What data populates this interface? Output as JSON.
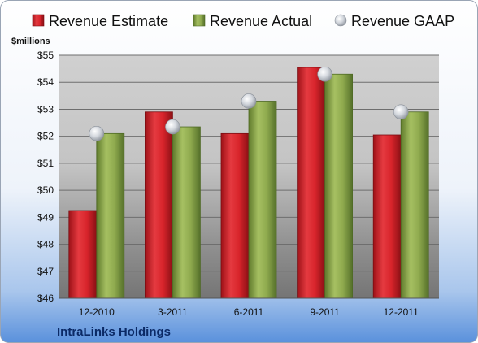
{
  "chart_data": {
    "type": "bar",
    "ylabel": "$millions",
    "ylim": [
      46,
      55
    ],
    "yticks": [
      46,
      47,
      48,
      49,
      50,
      51,
      52,
      53,
      54,
      55
    ],
    "ytick_labels": [
      "$46",
      "$47",
      "$48",
      "$49",
      "$50",
      "$51",
      "$52",
      "$53",
      "$54",
      "$55"
    ],
    "categories": [
      "12-2010",
      "3-2011",
      "6-2011",
      "9-2011",
      "12-2011"
    ],
    "series": [
      {
        "name": "Revenue Estimate",
        "kind": "bar",
        "color": "#d8242b",
        "values": [
          49.25,
          52.9,
          52.1,
          54.55,
          52.05
        ]
      },
      {
        "name": "Revenue Actual",
        "kind": "bar",
        "color": "#8faa4e",
        "values": [
          52.1,
          52.35,
          53.3,
          54.3,
          52.9
        ]
      },
      {
        "name": "Revenue GAAP",
        "kind": "marker",
        "color": "#c8cdd4",
        "values": [
          52.1,
          52.35,
          53.3,
          54.3,
          52.9
        ]
      }
    ],
    "legend": "top",
    "grid": true,
    "footer_label": "IntraLinks Holdings"
  }
}
